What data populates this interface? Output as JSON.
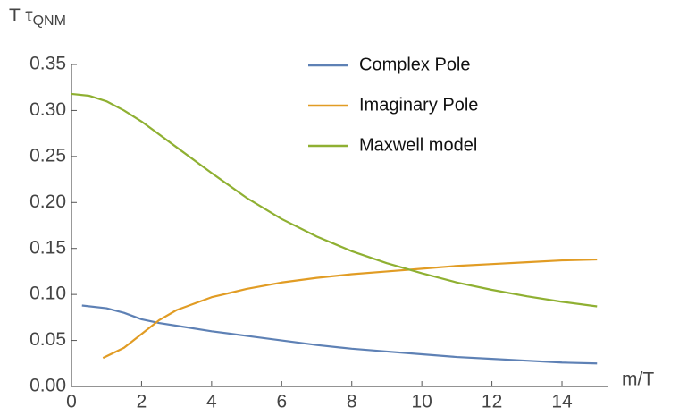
{
  "chart_data": {
    "type": "line",
    "ylabel": {
      "main": "T τ",
      "sub": "QNM"
    },
    "xlabel": "m/T",
    "xlim": [
      0,
      15.3
    ],
    "ylim": [
      0,
      0.35
    ],
    "xticks": [
      0,
      2,
      4,
      6,
      8,
      10,
      12,
      14
    ],
    "yticks": [
      {
        "value": 0,
        "label": "0.00"
      },
      {
        "value": 0.05,
        "label": "0.05"
      },
      {
        "value": 0.1,
        "label": "0.10"
      },
      {
        "value": 0.15,
        "label": "0.15"
      },
      {
        "value": 0.2,
        "label": "0.20"
      },
      {
        "value": 0.25,
        "label": "0.25"
      },
      {
        "value": 0.3,
        "label": "0.30"
      },
      {
        "value": 0.35,
        "label": "0.35"
      }
    ],
    "legend": "upper right",
    "series": [
      {
        "name": "Complex Pole",
        "color": "#5e81b5",
        "x": [
          0.3,
          1,
          1.5,
          2,
          2.5,
          3,
          4,
          5,
          6,
          7,
          8,
          9,
          10,
          11,
          12,
          13,
          14,
          15
        ],
        "values": [
          0.088,
          0.085,
          0.08,
          0.073,
          0.069,
          0.066,
          0.06,
          0.055,
          0.05,
          0.045,
          0.041,
          0.038,
          0.035,
          0.032,
          0.03,
          0.028,
          0.026,
          0.025
        ]
      },
      {
        "name": "Imaginary Pole",
        "color": "#e19c24",
        "x": [
          0.9,
          1.5,
          2,
          2.5,
          3,
          4,
          5,
          6,
          7,
          8,
          9,
          10,
          11,
          12,
          13,
          14,
          15
        ],
        "values": [
          0.031,
          0.042,
          0.057,
          0.072,
          0.083,
          0.097,
          0.106,
          0.113,
          0.118,
          0.122,
          0.125,
          0.128,
          0.131,
          0.133,
          0.135,
          0.137,
          0.138
        ]
      },
      {
        "name": "Maxwell model",
        "color": "#8fb032",
        "x": [
          0,
          0.5,
          1,
          1.5,
          2,
          3,
          4,
          5,
          6,
          7,
          8,
          9,
          10,
          11,
          12,
          13,
          14,
          15
        ],
        "values": [
          0.318,
          0.316,
          0.31,
          0.3,
          0.288,
          0.26,
          0.232,
          0.205,
          0.182,
          0.163,
          0.147,
          0.134,
          0.123,
          0.113,
          0.105,
          0.098,
          0.092,
          0.087
        ]
      }
    ]
  }
}
